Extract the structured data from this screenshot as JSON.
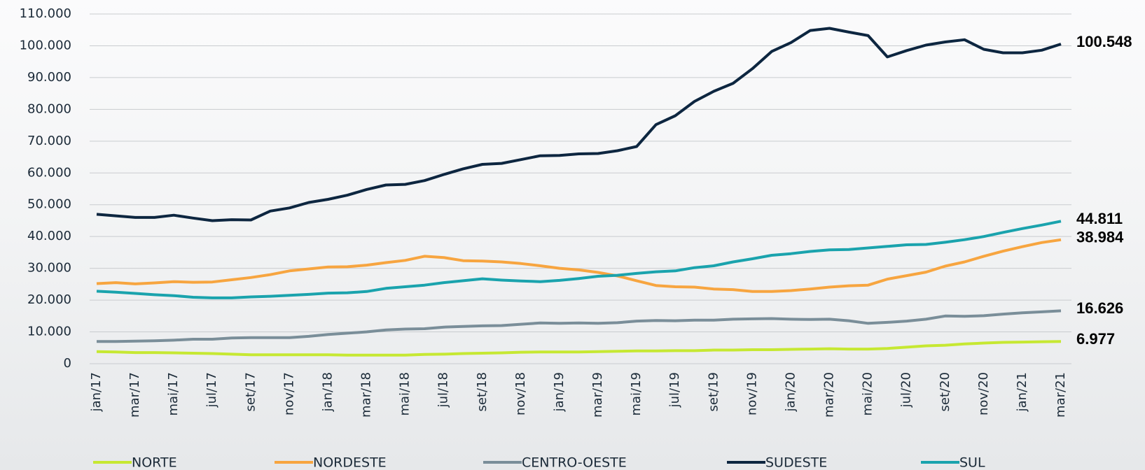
{
  "chart_data": {
    "type": "line",
    "categories": [
      "jan/17",
      null,
      "mar/17",
      null,
      "mai/17",
      null,
      "jul/17",
      null,
      "set/17",
      null,
      "nov/17",
      null,
      "jan/18",
      null,
      "mar/18",
      null,
      "mai/18",
      null,
      "jul/18",
      null,
      "set/18",
      null,
      "nov/18",
      null,
      "jan/19",
      null,
      "mar/19",
      null,
      "mai/19",
      null,
      "jul/19",
      null,
      "set/19",
      null,
      "nov/19",
      null,
      "jan/20",
      null,
      "mar/20",
      null,
      "mai/20",
      null,
      "jul/20",
      null,
      "set/20",
      null,
      "nov/20",
      null,
      "jan/21",
      null,
      "mar/21"
    ],
    "ylim": [
      0,
      110000
    ],
    "yticks": [
      0,
      {
        "value": 10000,
        "label": "10.000"
      },
      {
        "value": 20000,
        "label": "20.000"
      },
      {
        "value": 30000,
        "label": "30.000"
      },
      {
        "value": 40000,
        "label": "40.000"
      },
      {
        "value": 50000,
        "label": "50.000"
      },
      {
        "value": 60000,
        "label": "60.000"
      },
      {
        "value": 70000,
        "label": "70.000"
      },
      {
        "value": 80000,
        "label": "80.000"
      },
      {
        "value": 90000,
        "label": "90.000"
      },
      {
        "value": 100000,
        "label": "100.000"
      },
      {
        "value": 110000,
        "label": "110.000"
      }
    ],
    "grid": true,
    "series": [
      {
        "name": "NORTE",
        "color": "#c6e832",
        "values": [
          3800,
          3700,
          3500,
          3500,
          3400,
          3300,
          3200,
          3000,
          2800,
          2800,
          2800,
          2800,
          2800,
          2700,
          2700,
          2700,
          2700,
          2900,
          3000,
          3200,
          3300,
          3400,
          3600,
          3700,
          3700,
          3700,
          3800,
          3900,
          4000,
          4000,
          4100,
          4100,
          4300,
          4300,
          4400,
          4400,
          4500,
          4600,
          4700,
          4600,
          4600,
          4800,
          5200,
          5600,
          5800,
          6200,
          6500,
          6700,
          6800,
          6900,
          6977
        ],
        "value_labels": [
          null,
          null,
          null,
          null,
          null,
          null,
          null,
          null,
          null,
          null,
          null,
          null,
          null,
          null,
          null,
          null,
          null,
          null,
          null,
          null,
          null,
          null,
          null,
          null,
          null,
          null,
          null,
          null,
          null,
          null,
          null,
          null,
          null,
          null,
          null,
          null,
          null,
          null,
          null,
          null,
          null,
          null,
          null,
          null,
          null,
          null,
          null,
          null,
          null,
          null,
          "6.977"
        ]
      },
      {
        "name": "NORDESTE",
        "color": "#f7a540",
        "values": [
          25200,
          25500,
          25100,
          25400,
          25800,
          25600,
          25700,
          26400,
          27100,
          28000,
          29200,
          29800,
          30400,
          30500,
          31000,
          31800,
          32500,
          33800,
          33400,
          32400,
          32300,
          32000,
          31500,
          30800,
          30000,
          29500,
          28700,
          27600,
          26100,
          24600,
          24200,
          24100,
          23500,
          23300,
          22700,
          22700,
          23000,
          23500,
          24100,
          24500,
          24700,
          26600,
          27700,
          28800,
          30700,
          32000,
          33800,
          35400,
          36800,
          38100,
          38984
        ],
        "value_labels": [
          null,
          null,
          null,
          null,
          null,
          null,
          null,
          null,
          null,
          null,
          null,
          null,
          null,
          null,
          null,
          null,
          null,
          null,
          null,
          null,
          null,
          null,
          null,
          null,
          null,
          null,
          null,
          null,
          null,
          null,
          null,
          null,
          null,
          null,
          null,
          null,
          null,
          null,
          null,
          null,
          null,
          null,
          null,
          null,
          null,
          null,
          null,
          null,
          null,
          null,
          "38.984"
        ]
      },
      {
        "name": "CENTRO-OESTE",
        "color": "#7a8e99",
        "values": [
          7000,
          7000,
          7100,
          7200,
          7400,
          7700,
          7700,
          8100,
          8200,
          8200,
          8200,
          8600,
          9200,
          9600,
          10000,
          10600,
          10900,
          11000,
          11500,
          11700,
          11900,
          12000,
          12400,
          12800,
          12700,
          12800,
          12700,
          12900,
          13400,
          13600,
          13500,
          13700,
          13700,
          14000,
          14100,
          14200,
          14000,
          13900,
          14000,
          13500,
          12700,
          13000,
          13400,
          14000,
          15000,
          14900,
          15100,
          15600,
          16000,
          16300,
          16626
        ],
        "value_labels": [
          null,
          null,
          null,
          null,
          null,
          null,
          null,
          null,
          null,
          null,
          null,
          null,
          null,
          null,
          null,
          null,
          null,
          null,
          null,
          null,
          null,
          null,
          null,
          null,
          null,
          null,
          null,
          null,
          null,
          null,
          null,
          null,
          null,
          null,
          null,
          null,
          null,
          null,
          null,
          null,
          null,
          null,
          null,
          null,
          null,
          null,
          null,
          null,
          null,
          null,
          "16.626"
        ]
      },
      {
        "name": "SUDESTE",
        "color": "#0d2640",
        "values": [
          47000,
          46500,
          46000,
          46000,
          46700,
          45800,
          45000,
          45300,
          45200,
          48000,
          49000,
          50700,
          51700,
          53000,
          54800,
          56200,
          56400,
          57600,
          59500,
          61300,
          62700,
          63000,
          64200,
          65400,
          65500,
          66000,
          66100,
          67000,
          68300,
          75200,
          78000,
          82500,
          85700,
          88200,
          92800,
          98200,
          101000,
          104800,
          105500,
          104300,
          103200,
          96500,
          98500,
          100200,
          101200,
          101900,
          98900,
          97800,
          97800,
          98600,
          100548
        ],
        "value_labels": [
          null,
          null,
          null,
          null,
          null,
          null,
          null,
          null,
          null,
          null,
          null,
          null,
          null,
          null,
          null,
          null,
          null,
          null,
          null,
          null,
          null,
          null,
          null,
          null,
          null,
          null,
          null,
          null,
          null,
          null,
          null,
          null,
          null,
          null,
          null,
          null,
          null,
          null,
          null,
          null,
          null,
          null,
          null,
          null,
          null,
          null,
          null,
          null,
          null,
          null,
          "100.548"
        ]
      },
      {
        "name": "SUL",
        "color": "#1aa3ad",
        "values": [
          22800,
          22500,
          22100,
          21700,
          21400,
          20900,
          20700,
          20700,
          21000,
          21200,
          21500,
          21800,
          22200,
          22300,
          22700,
          23700,
          24200,
          24700,
          25500,
          26100,
          26700,
          26300,
          26000,
          25800,
          26200,
          26800,
          27500,
          27800,
          28400,
          28900,
          29200,
          30200,
          30800,
          32000,
          33000,
          34100,
          34600,
          35300,
          35800,
          35900,
          36400,
          36900,
          37400,
          37500,
          38200,
          39000,
          40000,
          41300,
          42500,
          43600,
          44811
        ],
        "value_labels": [
          null,
          null,
          null,
          null,
          null,
          null,
          null,
          null,
          null,
          null,
          null,
          null,
          null,
          null,
          null,
          null,
          null,
          null,
          null,
          null,
          null,
          null,
          null,
          null,
          null,
          null,
          null,
          null,
          null,
          null,
          null,
          null,
          null,
          null,
          null,
          null,
          null,
          null,
          null,
          null,
          null,
          null,
          null,
          null,
          null,
          null,
          null,
          null,
          null,
          null,
          "44.811"
        ]
      }
    ]
  }
}
